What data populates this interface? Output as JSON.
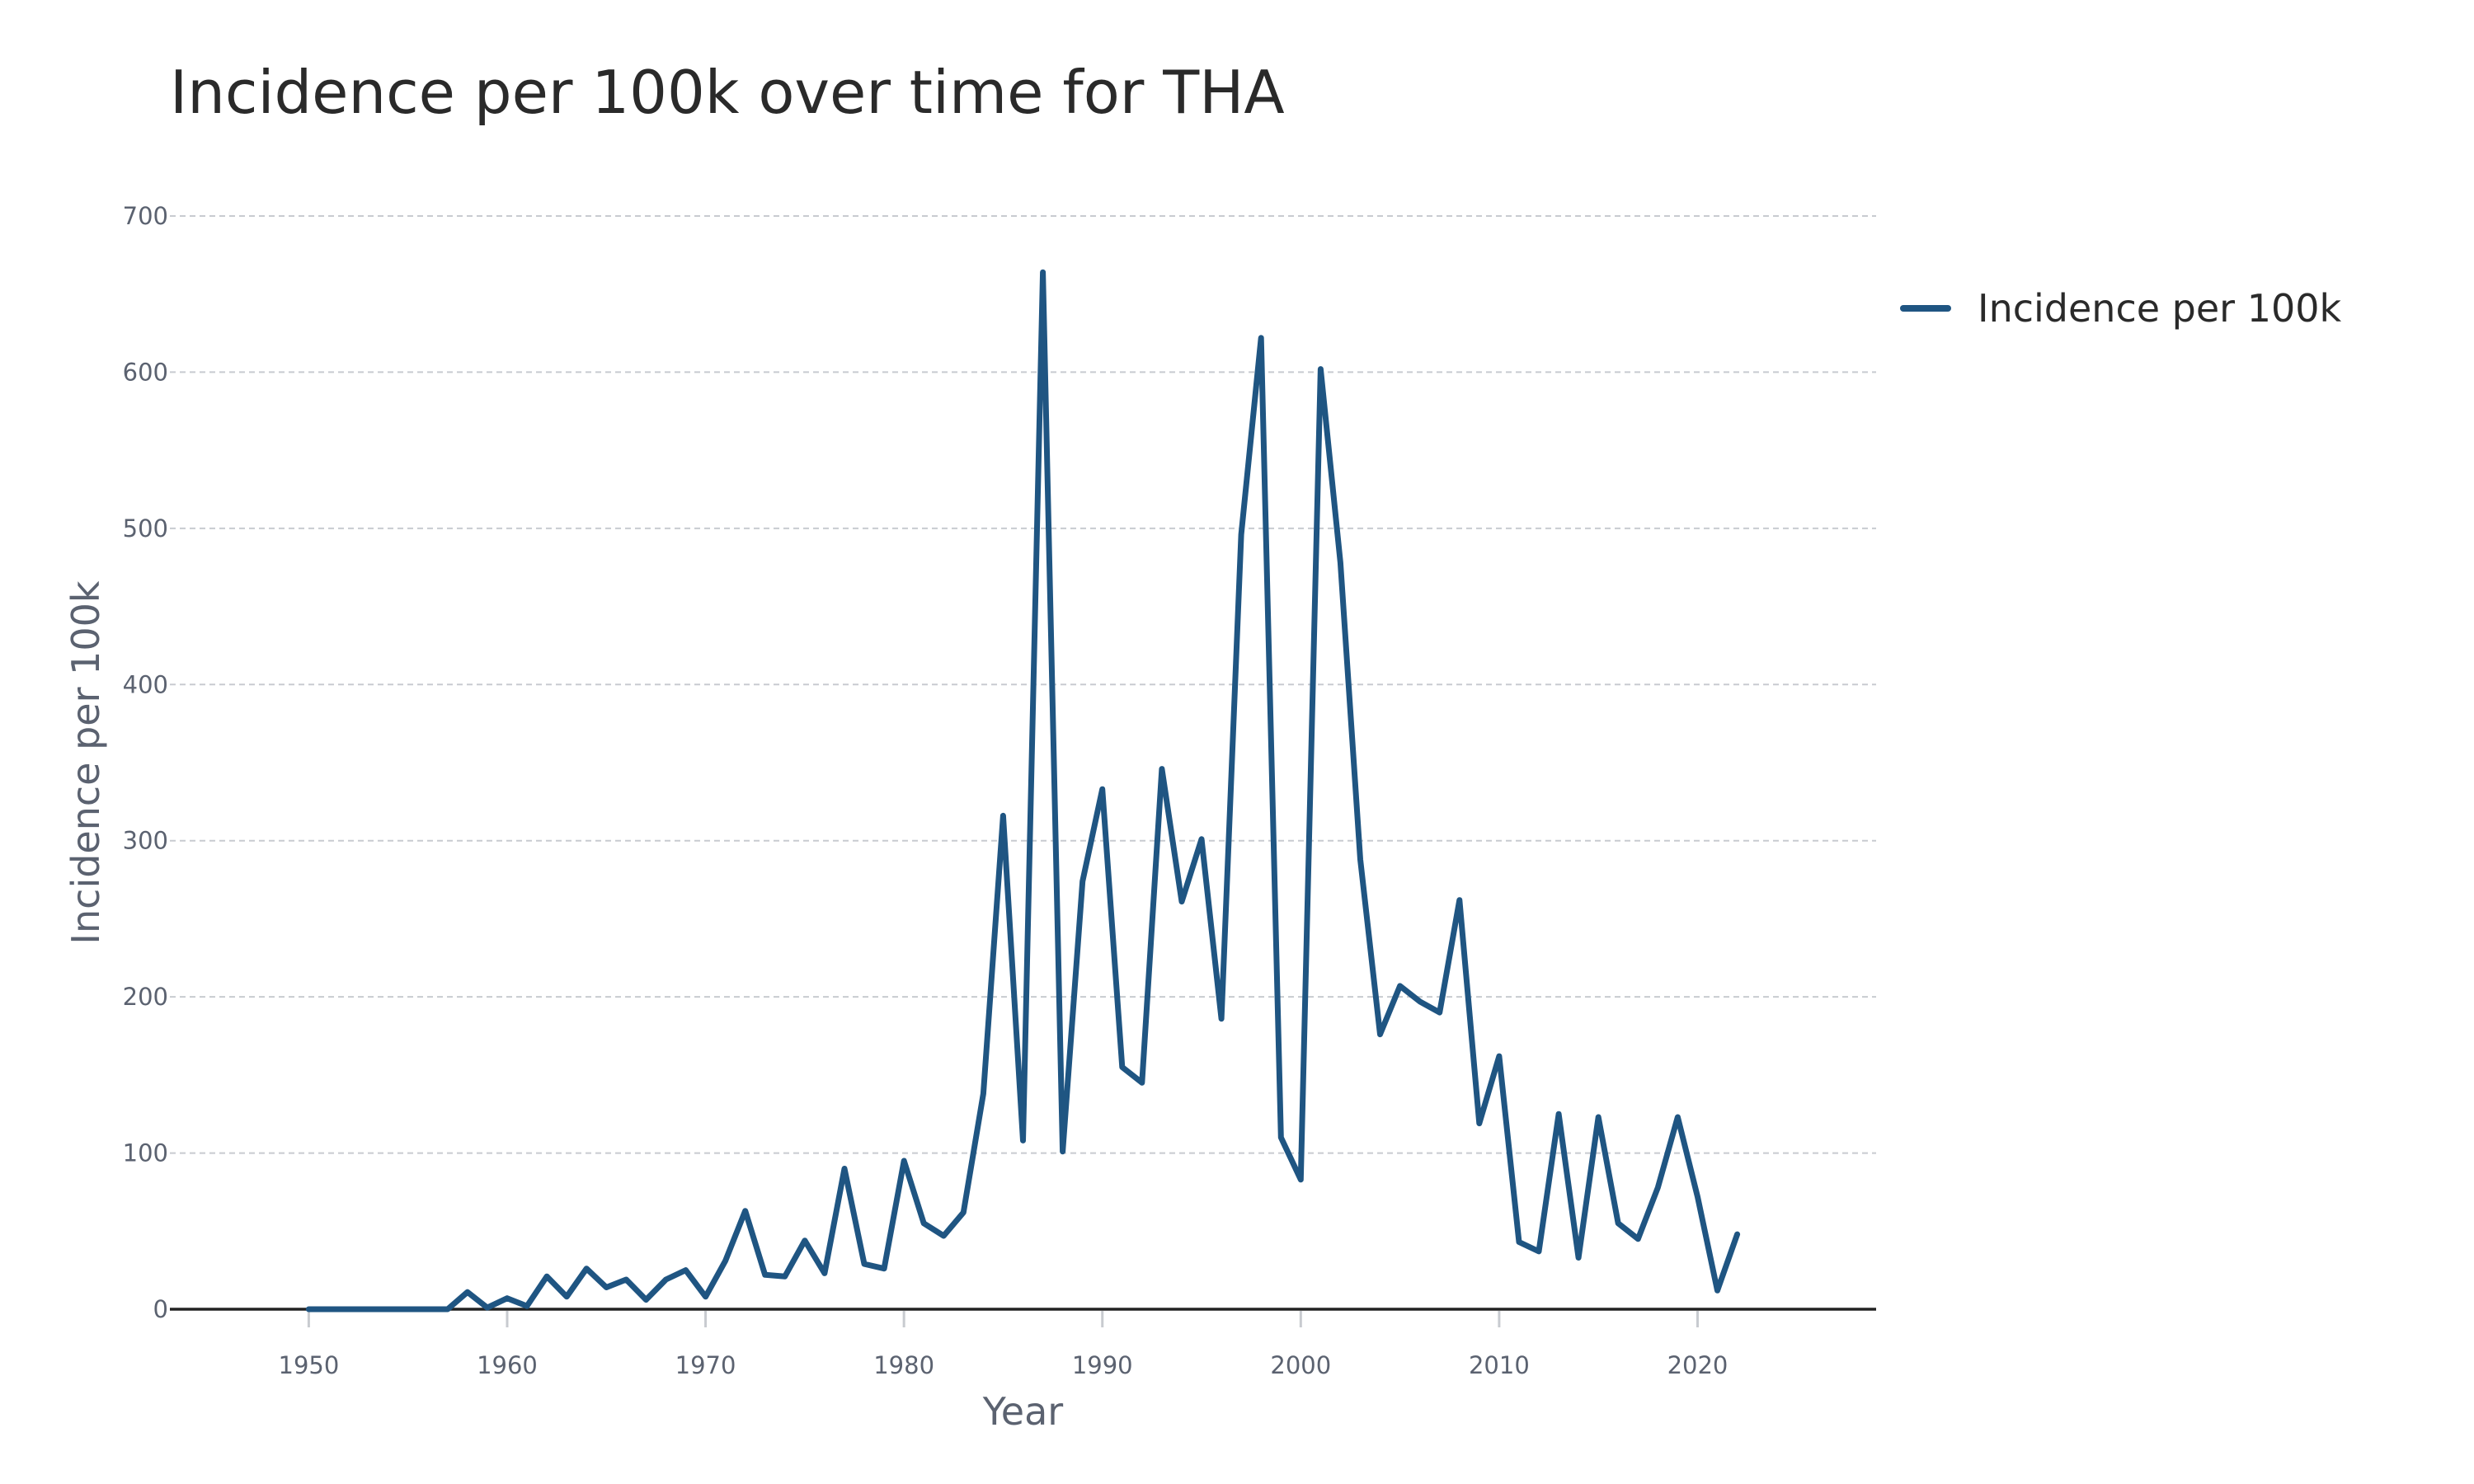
{
  "chart_data": {
    "type": "line",
    "title": "Incidence per 100k over time for THA",
    "xlabel": "Year",
    "ylabel": "Incidence per 100k",
    "xlim": [
      1943,
      2029
    ],
    "ylim": [
      0,
      700
    ],
    "x_ticks": [
      1950,
      1960,
      1970,
      1980,
      1990,
      2000,
      2010,
      2020
    ],
    "y_ticks": [
      0,
      100,
      200,
      300,
      400,
      500,
      600,
      700
    ],
    "grid": true,
    "legend_position": "top-right",
    "series": [
      {
        "name": "Incidence per 100k",
        "color": "#1f5582",
        "x": [
          1950,
          1951,
          1952,
          1953,
          1954,
          1955,
          1956,
          1957,
          1958,
          1959,
          1960,
          1961,
          1962,
          1963,
          1964,
          1965,
          1966,
          1967,
          1968,
          1969,
          1970,
          1971,
          1972,
          1973,
          1974,
          1975,
          1976,
          1977,
          1978,
          1979,
          1980,
          1981,
          1982,
          1983,
          1984,
          1985,
          1986,
          1987,
          1988,
          1989,
          1990,
          1991,
          1992,
          1993,
          1994,
          1995,
          1996,
          1997,
          1998,
          1999,
          2000,
          2001,
          2002,
          2003,
          2004,
          2005,
          2006,
          2007,
          2008,
          2009,
          2010,
          2011,
          2012,
          2013,
          2014,
          2015,
          2016,
          2017,
          2018,
          2019,
          2020,
          2021,
          2022
        ],
        "values": [
          0,
          0,
          0,
          0,
          0,
          0,
          0,
          0,
          11,
          1,
          7,
          2,
          21,
          8,
          26,
          14,
          19,
          6,
          19,
          25,
          8,
          31,
          63,
          22,
          21,
          44,
          23,
          90,
          29,
          26,
          95,
          55,
          47,
          62,
          138,
          316,
          108,
          664,
          101,
          274,
          333,
          155,
          145,
          346,
          261,
          301,
          186,
          496,
          622,
          110,
          83,
          602,
          478,
          288,
          176,
          207,
          197,
          190,
          262,
          119,
          162,
          43,
          37,
          125,
          33,
          123,
          55,
          45,
          78,
          123,
          72,
          12,
          48
        ]
      }
    ]
  }
}
